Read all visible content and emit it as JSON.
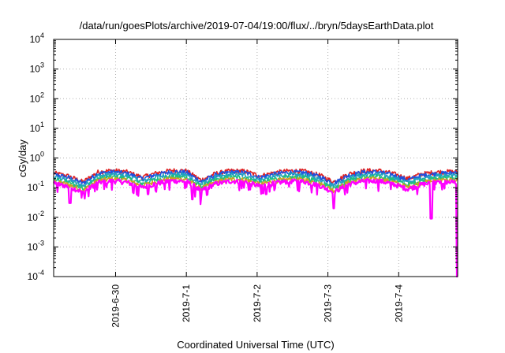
{
  "chart_data": {
    "type": "line",
    "title": "/data/run/goesPlots/archive/2019-07-04/19:00/flux/../bryn/5daysEarthData.plot",
    "xlabel": "Coordinated Universal Time (UTC)",
    "ylabel": "cGy/day",
    "yscale": "log",
    "ylim": [
      0.0001,
      10000
    ],
    "xlim": [
      "2019-06-29T03:00Z",
      "2019-07-04T20:00Z"
    ],
    "grid": true,
    "legend": "none",
    "y_ticks": [
      {
        "base": "10",
        "exp": "-4",
        "value": 0.0001
      },
      {
        "base": "10",
        "exp": "-3",
        "value": 0.001
      },
      {
        "base": "10",
        "exp": "-2",
        "value": 0.01
      },
      {
        "base": "10",
        "exp": "-1",
        "value": 0.1
      },
      {
        "base": "10",
        "exp": "0",
        "value": 1
      },
      {
        "base": "10",
        "exp": "1",
        "value": 10
      },
      {
        "base": "10",
        "exp": "2",
        "value": 100
      },
      {
        "base": "10",
        "exp": "3",
        "value": 1000
      },
      {
        "base": "10",
        "exp": "4",
        "value": 10000
      }
    ],
    "x_ticks": [
      {
        "label": "2019-6-30",
        "value": "2019-06-30T00:00Z"
      },
      {
        "label": "2019-7-1",
        "value": "2019-07-01T00:00Z"
      },
      {
        "label": "2019-7-2",
        "value": "2019-07-02T00:00Z"
      },
      {
        "label": "2019-7-3",
        "value": "2019-07-03T00:00Z"
      },
      {
        "label": "2019-7-4",
        "value": "2019-07-04T00:00Z"
      }
    ],
    "series": [
      {
        "color": "#e02020",
        "scale": 1.12
      },
      {
        "color": "#2050e0",
        "scale": 1.0
      },
      {
        "color": "#20a0c0",
        "scale": 0.82
      },
      {
        "color": "#20c080",
        "scale": 0.68
      },
      {
        "color": "#d0a020",
        "scale": 0.58
      },
      {
        "color": "#ff00ff",
        "scale": 0.5
      }
    ],
    "base_profile": {
      "x": [
        "2019-06-29T03:00Z",
        "2019-06-29T08:00Z",
        "2019-06-29T13:00Z",
        "2019-06-29T18:00Z",
        "2019-06-29T23:00Z",
        "2019-06-30T04:00Z",
        "2019-06-30T09:00Z",
        "2019-06-30T14:00Z",
        "2019-06-30T19:00Z",
        "2019-07-01T00:00Z",
        "2019-07-01T05:00Z",
        "2019-07-01T10:00Z",
        "2019-07-01T15:00Z",
        "2019-07-01T20:00Z",
        "2019-07-02T01:00Z",
        "2019-07-02T06:00Z",
        "2019-07-02T11:00Z",
        "2019-07-02T16:00Z",
        "2019-07-02T21:00Z",
        "2019-07-03T02:00Z",
        "2019-07-03T07:00Z",
        "2019-07-03T12:00Z",
        "2019-07-03T17:00Z",
        "2019-07-03T22:00Z",
        "2019-07-04T03:00Z",
        "2019-07-04T08:00Z",
        "2019-07-04T13:00Z",
        "2019-07-04T18:00Z",
        "2019-07-04T20:00Z"
      ],
      "y": [
        0.28,
        0.22,
        0.14,
        0.3,
        0.34,
        0.3,
        0.2,
        0.28,
        0.34,
        0.33,
        0.16,
        0.27,
        0.33,
        0.32,
        0.22,
        0.29,
        0.33,
        0.32,
        0.24,
        0.14,
        0.26,
        0.33,
        0.34,
        0.27,
        0.18,
        0.26,
        0.3,
        0.31,
        0.3
      ]
    },
    "dips": [
      {
        "x": "2019-06-29T08:30Z",
        "y": 0.03
      },
      {
        "x": "2019-06-30T11:00Z",
        "y": 0.06
      },
      {
        "x": "2019-07-01T02:00Z",
        "y": 0.04
      },
      {
        "x": "2019-07-01T05:00Z",
        "y": 0.05
      },
      {
        "x": "2019-07-02T03:00Z",
        "y": 0.06
      },
      {
        "x": "2019-07-03T02:00Z",
        "y": 0.02
      },
      {
        "x": "2019-07-04T11:00Z",
        "y": 0.009
      },
      {
        "x": "2019-07-04T19:55Z",
        "y": 0.0001
      }
    ]
  }
}
